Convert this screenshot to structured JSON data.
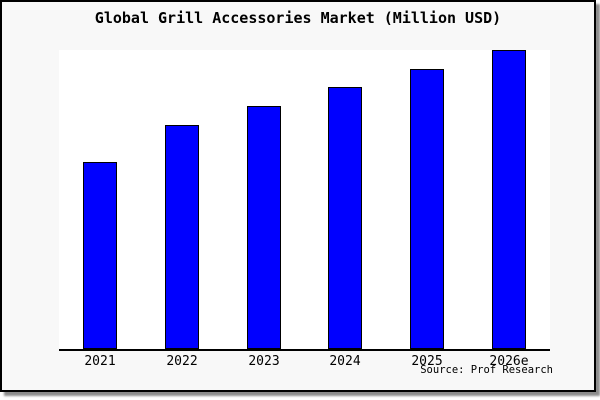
{
  "title": "Global Grill Accessories Market (Million USD)",
  "source_note": "Source: Prof Research",
  "colors": {
    "bar_fill": "#0000ff",
    "bar_border": "#000000",
    "canvas_background": "#f8f8f8",
    "plot_background": "#ffffff",
    "axis": "#000000",
    "text": "#000000"
  },
  "chart_data": {
    "type": "bar",
    "title": "Global Grill Accessories Market (Million USD)",
    "unit": "Million USD",
    "categories": [
      "2021",
      "2022",
      "2023",
      "2024",
      "2025",
      "2026e"
    ],
    "values_relative_to_max": [
      0.625,
      0.749,
      0.813,
      0.876,
      0.936,
      1.0
    ],
    "xlabel": "",
    "ylabel": "",
    "y_axis_labels_visible": false,
    "gridlines": false,
    "legend": false,
    "bar_orientation": "vertical",
    "source_note": "Source: Prof Research"
  }
}
